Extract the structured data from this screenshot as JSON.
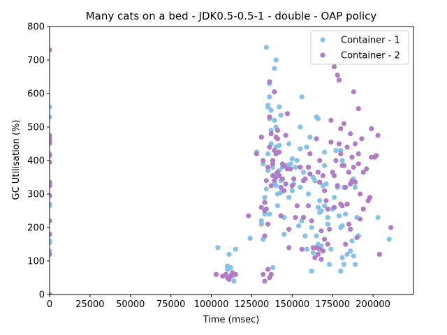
{
  "chart_data": {
    "type": "scatter",
    "title": "Many cats on a bed - JDK0.5-0.5-1 - double -  OAP policy",
    "xlabel": "Time (msec)",
    "ylabel": "GC Utilisation (%)",
    "xlim": [
      0,
      225000
    ],
    "ylim": [
      0,
      800
    ],
    "xticks": [
      0,
      25000,
      50000,
      75000,
      100000,
      125000,
      150000,
      175000,
      200000
    ],
    "xtick_labels": [
      "0",
      "25000",
      "50000",
      "75000",
      "100000",
      "125000",
      "150000",
      "175000",
      "200000"
    ],
    "yticks": [
      0,
      100,
      200,
      300,
      400,
      500,
      600,
      700,
      800
    ],
    "ytick_labels": [
      "0",
      "100",
      "200",
      "300",
      "400",
      "500",
      "600",
      "700",
      "800"
    ],
    "grid": false,
    "legend_position": "top-right",
    "series": [
      {
        "name": "Container - 1",
        "color": "#85c1e9",
        "points": [
          [
            0,
            560
          ],
          [
            0,
            530
          ],
          [
            0,
            450
          ],
          [
            0,
            420
          ],
          [
            0,
            330
          ],
          [
            0,
            270
          ],
          [
            0,
            265
          ],
          [
            0,
            180
          ],
          [
            0,
            160
          ],
          [
            0,
            155
          ],
          [
            0,
            130
          ],
          [
            0,
            0
          ],
          [
            104000,
            140
          ],
          [
            111000,
            120
          ],
          [
            110000,
            85
          ],
          [
            112000,
            80
          ],
          [
            110000,
            75
          ],
          [
            113000,
            55
          ],
          [
            115000,
            135
          ],
          [
            111000,
            50
          ],
          [
            114000,
            40
          ],
          [
            124000,
            168
          ],
          [
            128000,
            425
          ],
          [
            131000,
            220
          ],
          [
            131000,
            210
          ],
          [
            132000,
            165
          ],
          [
            132000,
            390
          ],
          [
            133000,
            240
          ],
          [
            133000,
            290
          ],
          [
            134000,
            738
          ],
          [
            134000,
            315
          ],
          [
            135000,
            565
          ],
          [
            135000,
            560
          ],
          [
            135000,
            420
          ],
          [
            135000,
            370
          ],
          [
            136000,
            630
          ],
          [
            136000,
            590
          ],
          [
            136000,
            525
          ],
          [
            136000,
            240
          ],
          [
            137000,
            550
          ],
          [
            137000,
            490
          ],
          [
            137000,
            450
          ],
          [
            138000,
            80
          ],
          [
            138000,
            400
          ],
          [
            138000,
            380
          ],
          [
            139000,
            675
          ],
          [
            139000,
            520
          ],
          [
            139000,
            330
          ],
          [
            140000,
            700
          ],
          [
            140000,
            500
          ],
          [
            140000,
            440
          ],
          [
            140000,
            360
          ],
          [
            140000,
            325
          ],
          [
            141000,
            300
          ],
          [
            141000,
            265
          ],
          [
            142000,
            560
          ],
          [
            142000,
            445
          ],
          [
            142000,
            370
          ],
          [
            143000,
            535
          ],
          [
            143000,
            340
          ],
          [
            143000,
            305
          ],
          [
            144000,
            380
          ],
          [
            145000,
            230
          ],
          [
            145000,
            180
          ],
          [
            146000,
            330
          ],
          [
            147000,
            385
          ],
          [
            148000,
            450
          ],
          [
            148000,
            290
          ],
          [
            149000,
            390
          ],
          [
            150000,
            405
          ],
          [
            150000,
            310
          ],
          [
            151000,
            330
          ],
          [
            152000,
            380
          ],
          [
            153000,
            400
          ],
          [
            154000,
            205
          ],
          [
            155000,
            500
          ],
          [
            155000,
            435
          ],
          [
            155000,
            320
          ],
          [
            156000,
            590
          ],
          [
            156000,
            220
          ],
          [
            157000,
            365
          ],
          [
            157000,
            230
          ],
          [
            158000,
            175
          ],
          [
            159000,
            440
          ],
          [
            159000,
            135
          ],
          [
            160000,
            380
          ],
          [
            160000,
            300
          ],
          [
            161000,
            470
          ],
          [
            162000,
            200
          ],
          [
            162000,
            70
          ],
          [
            163000,
            125
          ],
          [
            163000,
            350
          ],
          [
            164000,
            340
          ],
          [
            165000,
            530
          ],
          [
            165000,
            175
          ],
          [
            166000,
            525
          ],
          [
            166000,
            260
          ],
          [
            166000,
            150
          ],
          [
            167000,
            245
          ],
          [
            167000,
            280
          ],
          [
            168000,
            250
          ],
          [
            168000,
            145
          ],
          [
            169000,
            325
          ],
          [
            169000,
            130
          ],
          [
            170000,
            425
          ],
          [
            170000,
            385
          ],
          [
            170000,
            265
          ],
          [
            171000,
            330
          ],
          [
            172000,
            230
          ],
          [
            172000,
            210
          ],
          [
            173000,
            90
          ],
          [
            174000,
            135
          ],
          [
            175000,
            255
          ],
          [
            176000,
            290
          ],
          [
            177000,
            430
          ],
          [
            178000,
            320
          ],
          [
            179000,
            235
          ],
          [
            180000,
            430
          ],
          [
            180000,
            200
          ],
          [
            180000,
            70
          ],
          [
            181000,
            400
          ],
          [
            181000,
            205
          ],
          [
            181000,
            110
          ],
          [
            182000,
            320
          ],
          [
            182000,
            90
          ],
          [
            183000,
            240
          ],
          [
            184000,
            120
          ],
          [
            186000,
            130
          ],
          [
            187000,
            160
          ],
          [
            188000,
            345
          ],
          [
            188000,
            115
          ],
          [
            189000,
            320
          ],
          [
            189000,
            90
          ],
          [
            190000,
            230
          ],
          [
            191000,
            175
          ],
          [
            203000,
            230
          ],
          [
            210000,
            165
          ]
        ]
      },
      {
        "name": "Container - 2",
        "color": "#b07cc6",
        "points": [
          [
            0,
            730
          ],
          [
            0,
            475
          ],
          [
            0,
            465
          ],
          [
            0,
            455
          ],
          [
            0,
            415
          ],
          [
            0,
            395
          ],
          [
            0,
            335
          ],
          [
            0,
            325
          ],
          [
            0,
            295
          ],
          [
            0,
            220
          ],
          [
            0,
            180
          ],
          [
            0,
            120
          ],
          [
            0,
            0
          ],
          [
            103000,
            60
          ],
          [
            107000,
            55
          ],
          [
            109000,
            60
          ],
          [
            110000,
            50
          ],
          [
            111000,
            45
          ],
          [
            112000,
            55
          ],
          [
            113000,
            65
          ],
          [
            115000,
            60
          ],
          [
            123000,
            235
          ],
          [
            128000,
            420
          ],
          [
            131000,
            470
          ],
          [
            131000,
            260
          ],
          [
            132000,
            400
          ],
          [
            132000,
            60
          ],
          [
            133000,
            275
          ],
          [
            133000,
            250
          ],
          [
            133000,
            175
          ],
          [
            133000,
            40
          ],
          [
            134000,
            340
          ],
          [
            134000,
            255
          ],
          [
            135000,
            380
          ],
          [
            135000,
            210
          ],
          [
            135000,
            75
          ],
          [
            136000,
            635
          ],
          [
            136000,
            530
          ],
          [
            136000,
            440
          ],
          [
            136000,
            50
          ],
          [
            137000,
            480
          ],
          [
            137000,
            325
          ],
          [
            137000,
            60
          ],
          [
            138000,
            400
          ],
          [
            138000,
            390
          ],
          [
            138000,
            355
          ],
          [
            139000,
            605
          ],
          [
            139000,
            430
          ],
          [
            139000,
            340
          ],
          [
            140000,
            470
          ],
          [
            140000,
            420
          ],
          [
            140000,
            350
          ],
          [
            141000,
            490
          ],
          [
            141000,
            465
          ],
          [
            141000,
            365
          ],
          [
            142000,
            425
          ],
          [
            142000,
            355
          ],
          [
            143000,
            320
          ],
          [
            143000,
            235
          ],
          [
            144000,
            390
          ],
          [
            144000,
            345
          ],
          [
            145000,
            385
          ],
          [
            145000,
            310
          ],
          [
            146000,
            475
          ],
          [
            146000,
            330
          ],
          [
            147000,
            540
          ],
          [
            147000,
            375
          ],
          [
            148000,
            195
          ],
          [
            148000,
            140
          ],
          [
            149000,
            375
          ],
          [
            150000,
            325
          ],
          [
            151000,
            345
          ],
          [
            152000,
            230
          ],
          [
            153000,
            265
          ],
          [
            155000,
            380
          ],
          [
            156000,
            135
          ],
          [
            157000,
            340
          ],
          [
            157000,
            230
          ],
          [
            158000,
            345
          ],
          [
            160000,
            380
          ],
          [
            160000,
            265
          ],
          [
            161000,
            420
          ],
          [
            161000,
            360
          ],
          [
            162000,
            220
          ],
          [
            163000,
            140
          ],
          [
            164000,
            110
          ],
          [
            165000,
            465
          ],
          [
            165000,
            140
          ],
          [
            166000,
            365
          ],
          [
            166000,
            120
          ],
          [
            167000,
            400
          ],
          [
            167000,
            335
          ],
          [
            167000,
            135
          ],
          [
            168000,
            190
          ],
          [
            168000,
            105
          ],
          [
            169000,
            355
          ],
          [
            169000,
            130
          ],
          [
            170000,
            310
          ],
          [
            170000,
            165
          ],
          [
            171000,
            280
          ],
          [
            172000,
            150
          ],
          [
            172000,
            255
          ],
          [
            173000,
            195
          ],
          [
            174000,
            520
          ],
          [
            174000,
            455
          ],
          [
            175000,
            365
          ],
          [
            176000,
            680
          ],
          [
            176000,
            355
          ],
          [
            176000,
            260
          ],
          [
            177000,
            400
          ],
          [
            178000,
            655
          ],
          [
            178000,
            325
          ],
          [
            179000,
            640
          ],
          [
            179000,
            450
          ],
          [
            180000,
            495
          ],
          [
            180000,
            420
          ],
          [
            180000,
            270
          ],
          [
            181000,
            385
          ],
          [
            181000,
            265
          ],
          [
            182000,
            510
          ],
          [
            182000,
            385
          ],
          [
            183000,
            320
          ],
          [
            183000,
            150
          ],
          [
            184000,
            440
          ],
          [
            184000,
            270
          ],
          [
            185000,
            365
          ],
          [
            185000,
            210
          ],
          [
            186000,
            480
          ],
          [
            186000,
            330
          ],
          [
            186000,
            195
          ],
          [
            187000,
            410
          ],
          [
            187000,
            340
          ],
          [
            188000,
            605
          ],
          [
            188000,
            380
          ],
          [
            189000,
            450
          ],
          [
            189000,
            335
          ],
          [
            190000,
            170
          ],
          [
            191000,
            555
          ],
          [
            191000,
            420
          ],
          [
            191000,
            390
          ],
          [
            192000,
            300
          ],
          [
            192000,
            225
          ],
          [
            193000,
            465
          ],
          [
            194000,
            365
          ],
          [
            194000,
            255
          ],
          [
            196000,
            375
          ],
          [
            197000,
            280
          ],
          [
            198000,
            290
          ],
          [
            199000,
            410
          ],
          [
            199000,
            495
          ],
          [
            201000,
            410
          ],
          [
            202000,
            415
          ],
          [
            203000,
            475
          ],
          [
            204000,
            120
          ],
          [
            211000,
            200
          ]
        ]
      }
    ]
  }
}
